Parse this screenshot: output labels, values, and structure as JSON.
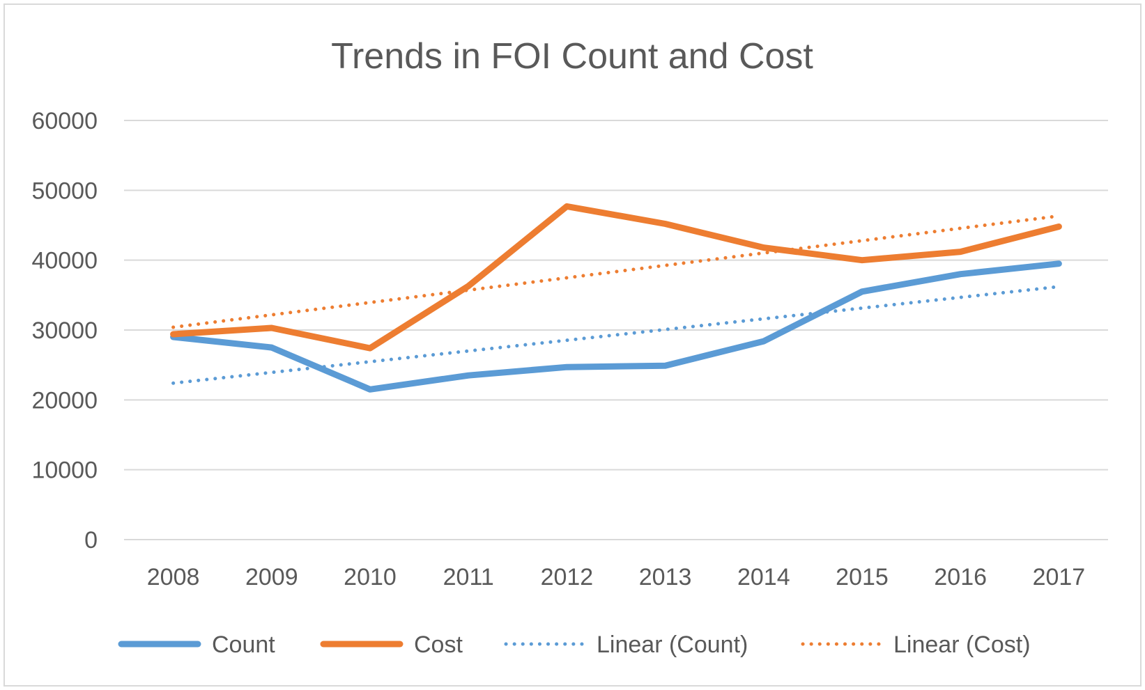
{
  "chart_data": {
    "type": "line",
    "title": "Trends in FOI Count and Cost",
    "xlabel": "",
    "ylabel": "",
    "categories": [
      "2008",
      "2009",
      "2010",
      "2011",
      "2012",
      "2013",
      "2014",
      "2015",
      "2016",
      "2017"
    ],
    "ylim": [
      0,
      60000
    ],
    "yticks": [
      "0",
      "10000",
      "20000",
      "30000",
      "40000",
      "50000",
      "60000"
    ],
    "grid": true,
    "legend_position": "bottom",
    "series": [
      {
        "name": "Count",
        "style": "solid",
        "color": "#5b9bd5",
        "values": [
          29000,
          27500,
          21500,
          23500,
          24700,
          24900,
          28400,
          35500,
          38000,
          39500
        ]
      },
      {
        "name": "Cost",
        "style": "solid",
        "color": "#ed7d31",
        "values": [
          29400,
          30300,
          27400,
          36300,
          47700,
          45200,
          41800,
          40000,
          41200,
          44800
        ]
      },
      {
        "name": "Linear (Count)",
        "style": "dotted",
        "color": "#5b9bd5",
        "values": [
          22400,
          23935,
          25469,
          27004,
          28538,
          30073,
          31607,
          33142,
          34676,
          36211
        ]
      },
      {
        "name": "Linear (Cost)",
        "style": "dotted",
        "color": "#ed7d31",
        "values": [
          30400,
          32170,
          33940,
          35710,
          37480,
          39250,
          41020,
          42790,
          44560,
          46330
        ]
      }
    ]
  }
}
